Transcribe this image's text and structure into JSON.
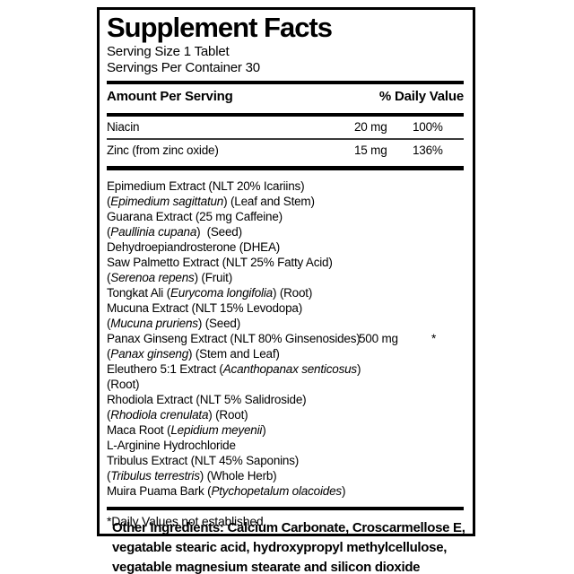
{
  "label": {
    "title": "Supplement Facts",
    "serving_size": "Serving Size 1 Tablet",
    "servings_per_container": "Servings Per Container 30",
    "header": {
      "amount_per_serving": "Amount Per Serving",
      "percent_daily_value": "% Daily Value"
    },
    "nutrients": [
      {
        "name": "Niacin",
        "amount": "20 mg",
        "dv": "100%"
      },
      {
        "name": "Zinc (from zinc oxide)",
        "amount": "15 mg",
        "dv": "136%"
      }
    ],
    "blend": {
      "amount": "500 mg",
      "dv": "*",
      "amount_line_index": 10,
      "lines": [
        {
          "segments": [
            {
              "t": "Epimedium Extract (NLT 20% Icariins)",
              "i": false
            }
          ]
        },
        {
          "segments": [
            {
              "t": "(",
              "i": false
            },
            {
              "t": "Epimedium sagittatun",
              "i": true
            },
            {
              "t": ") (Leaf and Stem)",
              "i": false
            }
          ]
        },
        {
          "segments": [
            {
              "t": "Guarana Extract (25 mg Caffeine)",
              "i": false
            }
          ]
        },
        {
          "segments": [
            {
              "t": "(",
              "i": false
            },
            {
              "t": "Paullinia cupana",
              "i": true
            },
            {
              "t": ")  (Seed)",
              "i": false
            }
          ]
        },
        {
          "segments": [
            {
              "t": "Dehydroepiandrosterone (DHEA)",
              "i": false
            }
          ]
        },
        {
          "segments": [
            {
              "t": "Saw Palmetto Extract (NLT 25% Fatty Acid)",
              "i": false
            }
          ]
        },
        {
          "segments": [
            {
              "t": "(",
              "i": false
            },
            {
              "t": "Serenoa repens",
              "i": true
            },
            {
              "t": ") (Fruit)",
              "i": false
            }
          ]
        },
        {
          "segments": [
            {
              "t": "Tongkat Ali (",
              "i": false
            },
            {
              "t": "Eurycoma longifolia",
              "i": true
            },
            {
              "t": ") (Root)",
              "i": false
            }
          ]
        },
        {
          "segments": [
            {
              "t": "Mucuna Extract (NLT 15% Levodopa)",
              "i": false
            }
          ]
        },
        {
          "segments": [
            {
              "t": "(",
              "i": false
            },
            {
              "t": "Mucuna pruriens",
              "i": true
            },
            {
              "t": ") (Seed)",
              "i": false
            }
          ]
        },
        {
          "segments": [
            {
              "t": "Panax Ginseng Extract (NLT 80% Ginsenosides)",
              "i": false
            }
          ]
        },
        {
          "segments": [
            {
              "t": "(",
              "i": false
            },
            {
              "t": "Panax ginseng",
              "i": true
            },
            {
              "t": ") (Stem and Leaf)",
              "i": false
            }
          ]
        },
        {
          "segments": [
            {
              "t": "Eleuthero 5:1 Extract (",
              "i": false
            },
            {
              "t": "Acanthopanax senticosus",
              "i": true
            },
            {
              "t": ")",
              "i": false
            }
          ]
        },
        {
          "segments": [
            {
              "t": "(Root)",
              "i": false
            }
          ]
        },
        {
          "segments": [
            {
              "t": "Rhodiola Extract (NLT 5% Salidroside)",
              "i": false
            }
          ]
        },
        {
          "segments": [
            {
              "t": "(",
              "i": false
            },
            {
              "t": "Rhodiola crenulata",
              "i": true
            },
            {
              "t": ") (Root)",
              "i": false
            }
          ]
        },
        {
          "segments": [
            {
              "t": "Maca Root (",
              "i": false
            },
            {
              "t": "Lepidium meyenii",
              "i": true
            },
            {
              "t": ")",
              "i": false
            }
          ]
        },
        {
          "segments": [
            {
              "t": "L-Arginine Hydrochloride",
              "i": false
            }
          ]
        },
        {
          "segments": [
            {
              "t": "Tribulus Extract (NLT 45% Saponins)",
              "i": false
            }
          ]
        },
        {
          "segments": [
            {
              "t": "(",
              "i": false
            },
            {
              "t": "Tribulus terrestris",
              "i": true
            },
            {
              "t": ") (Whole Herb)",
              "i": false
            }
          ]
        },
        {
          "segments": [
            {
              "t": "Muira Puama Bark (",
              "i": false
            },
            {
              "t": "Ptychopetalum olacoides",
              "i": true
            },
            {
              "t": ")",
              "i": false
            }
          ]
        }
      ]
    },
    "footnote": "*Daily Values not established.",
    "other_ingredients": {
      "lines": [
        "Other Ingredients: Calcium Carbonate, Croscarmellose E,",
        "vegatable stearic acid, hydroxypropyl methylcellulose,",
        "vegatable magnesium stearate and silicon dioxide"
      ]
    },
    "colors": {
      "text": "#000000",
      "background": "#ffffff",
      "rule": "#000000"
    }
  }
}
